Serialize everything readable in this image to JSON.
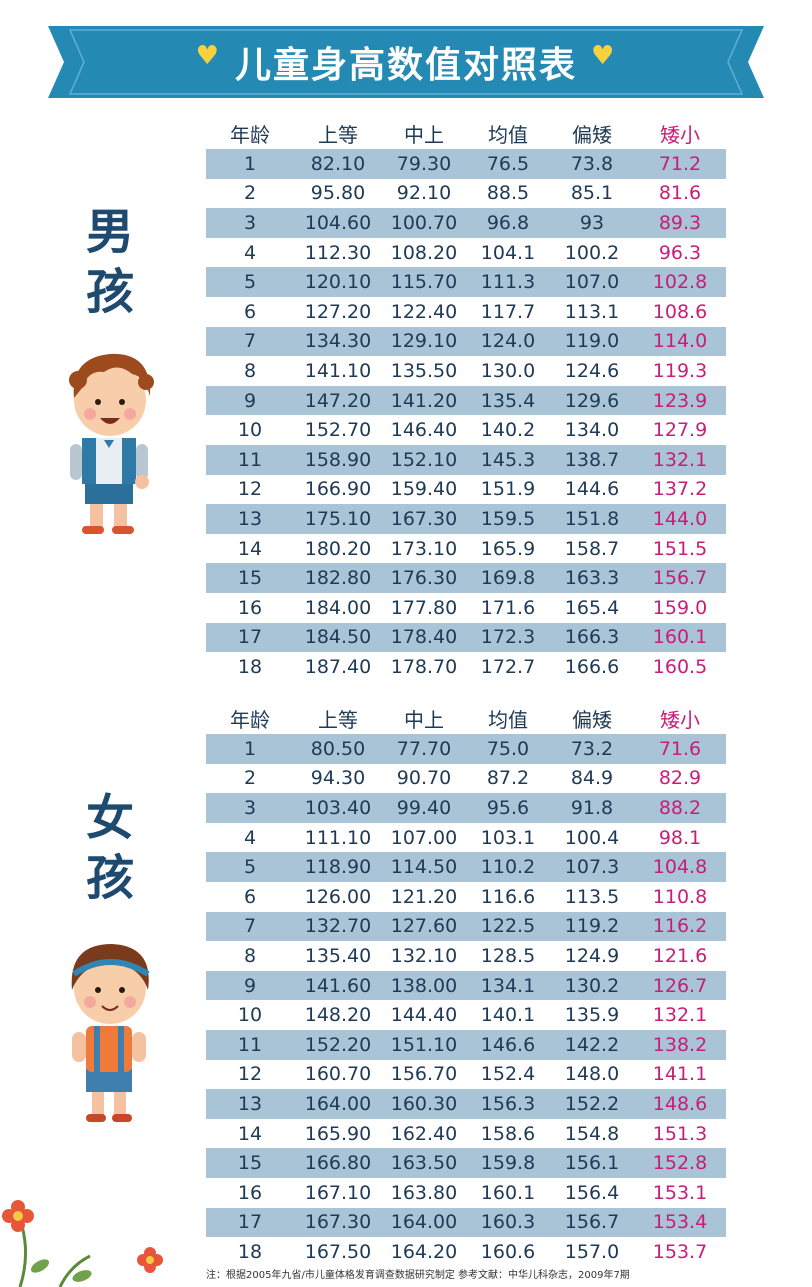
{
  "title": "儿童身高数值对照表",
  "colors": {
    "banner": "#2489b3",
    "heart": "#f7d23e",
    "shaded_row": "#a8c4d6",
    "short_col": "#c81d78"
  },
  "headers": [
    "年龄",
    "上等",
    "中上",
    "均值",
    "偏矮",
    "矮小"
  ],
  "boys": {
    "label_line1": "男",
    "label_line2": "孩",
    "rows": [
      [
        "1",
        "82.10",
        "79.30",
        "76.5",
        "73.8",
        "71.2"
      ],
      [
        "2",
        "95.80",
        "92.10",
        "88.5",
        "85.1",
        "81.6"
      ],
      [
        "3",
        "104.60",
        "100.70",
        "96.8",
        "93",
        "89.3"
      ],
      [
        "4",
        "112.30",
        "108.20",
        "104.1",
        "100.2",
        "96.3"
      ],
      [
        "5",
        "120.10",
        "115.70",
        "111.3",
        "107.0",
        "102.8"
      ],
      [
        "6",
        "127.20",
        "122.40",
        "117.7",
        "113.1",
        "108.6"
      ],
      [
        "7",
        "134.30",
        "129.10",
        "124.0",
        "119.0",
        "114.0"
      ],
      [
        "8",
        "141.10",
        "135.50",
        "130.0",
        "124.6",
        "119.3"
      ],
      [
        "9",
        "147.20",
        "141.20",
        "135.4",
        "129.6",
        "123.9"
      ],
      [
        "10",
        "152.70",
        "146.40",
        "140.2",
        "134.0",
        "127.9"
      ],
      [
        "11",
        "158.90",
        "152.10",
        "145.3",
        "138.7",
        "132.1"
      ],
      [
        "12",
        "166.90",
        "159.40",
        "151.9",
        "144.6",
        "137.2"
      ],
      [
        "13",
        "175.10",
        "167.30",
        "159.5",
        "151.8",
        "144.0"
      ],
      [
        "14",
        "180.20",
        "173.10",
        "165.9",
        "158.7",
        "151.5"
      ],
      [
        "15",
        "182.80",
        "176.30",
        "169.8",
        "163.3",
        "156.7"
      ],
      [
        "16",
        "184.00",
        "177.80",
        "171.6",
        "165.4",
        "159.0"
      ],
      [
        "17",
        "184.50",
        "178.40",
        "172.3",
        "166.3",
        "160.1"
      ],
      [
        "18",
        "187.40",
        "178.70",
        "172.7",
        "166.6",
        "160.5"
      ]
    ]
  },
  "girls": {
    "label_line1": "女",
    "label_line2": "孩",
    "rows": [
      [
        "1",
        "80.50",
        "77.70",
        "75.0",
        "73.2",
        "71.6"
      ],
      [
        "2",
        "94.30",
        "90.70",
        "87.2",
        "84.9",
        "82.9"
      ],
      [
        "3",
        "103.40",
        "99.40",
        "95.6",
        "91.8",
        "88.2"
      ],
      [
        "4",
        "111.10",
        "107.00",
        "103.1",
        "100.4",
        "98.1"
      ],
      [
        "5",
        "118.90",
        "114.50",
        "110.2",
        "107.3",
        "104.8"
      ],
      [
        "6",
        "126.00",
        "121.20",
        "116.6",
        "113.5",
        "110.8"
      ],
      [
        "7",
        "132.70",
        "127.60",
        "122.5",
        "119.2",
        "116.2"
      ],
      [
        "8",
        "135.40",
        "132.10",
        "128.5",
        "124.9",
        "121.6"
      ],
      [
        "9",
        "141.60",
        "138.00",
        "134.1",
        "130.2",
        "126.7"
      ],
      [
        "10",
        "148.20",
        "144.40",
        "140.1",
        "135.9",
        "132.1"
      ],
      [
        "11",
        "152.20",
        "151.10",
        "146.6",
        "142.2",
        "138.2"
      ],
      [
        "12",
        "160.70",
        "156.70",
        "152.4",
        "148.0",
        "141.1"
      ],
      [
        "13",
        "164.00",
        "160.30",
        "156.3",
        "152.2",
        "148.6"
      ],
      [
        "14",
        "165.90",
        "162.40",
        "158.6",
        "154.8",
        "151.3"
      ],
      [
        "15",
        "166.80",
        "163.50",
        "159.8",
        "156.1",
        "152.8"
      ],
      [
        "16",
        "167.10",
        "163.80",
        "160.1",
        "156.4",
        "153.1"
      ],
      [
        "17",
        "167.30",
        "164.00",
        "160.3",
        "156.7",
        "153.4"
      ],
      [
        "18",
        "167.50",
        "164.20",
        "160.6",
        "157.0",
        "153.7"
      ]
    ]
  },
  "footnote": "注：根据2005年九省/市儿童体格发育调查数据研究制定   参考文献：中华儿科杂志，2009年7期"
}
